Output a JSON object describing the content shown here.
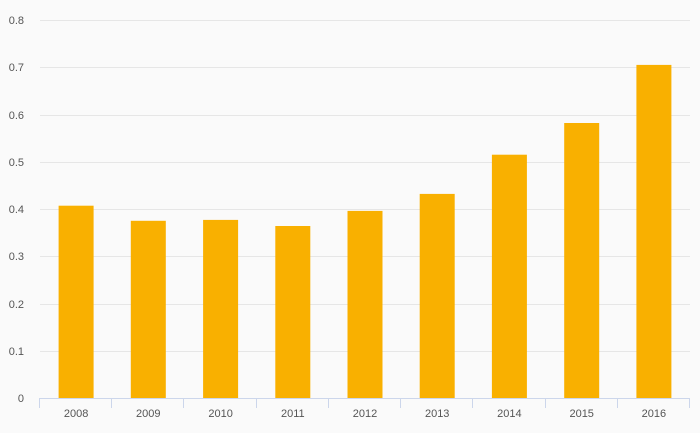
{
  "chart_data": {
    "type": "bar",
    "categories": [
      "2008",
      "2009",
      "2010",
      "2011",
      "2012",
      "2013",
      "2014",
      "2015",
      "2016"
    ],
    "values": [
      0.407,
      0.375,
      0.377,
      0.364,
      0.396,
      0.432,
      0.515,
      0.582,
      0.705
    ],
    "title": "",
    "xlabel": "",
    "ylabel": "",
    "ylim": [
      0,
      0.8
    ],
    "yticks": [
      "0",
      "0.1",
      "0.2",
      "0.3",
      "0.4",
      "0.5",
      "0.6",
      "0.7",
      "0.8"
    ],
    "grid": true,
    "legend": "none"
  },
  "colors": {
    "bar": "#f9b000",
    "grid": "#e6e6e6",
    "axis": "#ccd6eb",
    "background": "#fafafa"
  }
}
